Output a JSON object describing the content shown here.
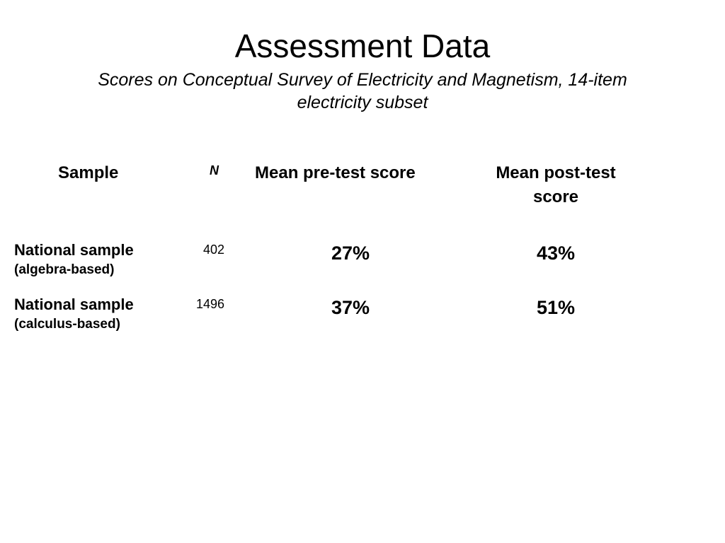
{
  "slide": {
    "title": "Assessment Data",
    "subtitle_line1": "Scores on Conceptual Survey of Electricity and Magnetism, 14-item",
    "subtitle_line2": "electricity subset"
  },
  "table": {
    "headers": {
      "sample": "Sample",
      "n": "N",
      "pre": "Mean pre-test score",
      "post_line1": "Mean post-test",
      "post_line2": "score"
    },
    "rows": [
      {
        "sample_line1": "National sample",
        "sample_line2": "(algebra-based)",
        "n": "402",
        "pre": "27%",
        "post": "43%"
      },
      {
        "sample_line1": "National sample",
        "sample_line2": "(calculus-based)",
        "n": "1496",
        "pre": "37%",
        "post": "51%"
      }
    ]
  }
}
